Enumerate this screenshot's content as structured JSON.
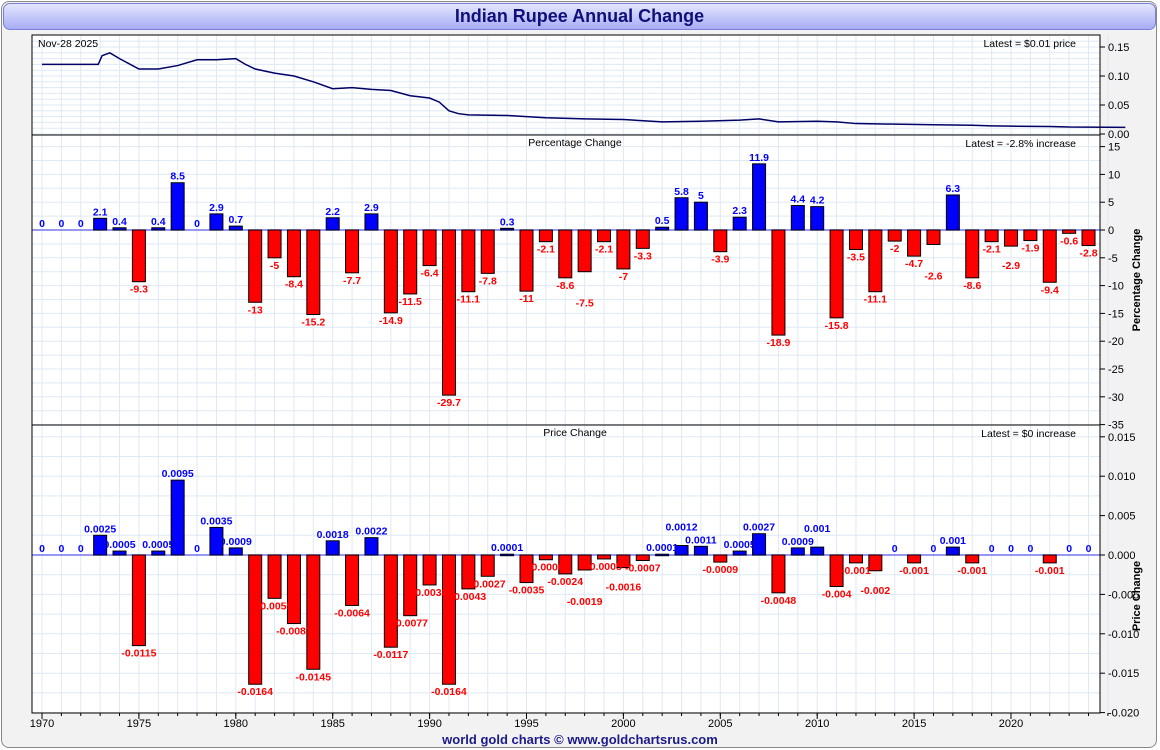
{
  "title": "Indian Rupee Annual Change",
  "footer": "world gold charts © www.goldchartsrus.com",
  "colors": {
    "up": "#0000ff",
    "down": "#ff0000",
    "line": "#000066",
    "grid": "#dde9f5"
  },
  "chart_data": [
    {
      "type": "line",
      "date_label": "Nov-28  2025",
      "latest": "Latest = $0.01 price",
      "ylim": [
        0,
        0.16
      ],
      "yticks": [
        "0.15",
        "0.10",
        "0.05",
        "0.00"
      ],
      "ytick_values": [
        0.15,
        0.1,
        0.05,
        0.0
      ],
      "x": [
        1970,
        1972.9,
        1973.1,
        1973.5,
        1974,
        1975,
        1976,
        1977,
        1978,
        1979,
        1980,
        1980.5,
        1981,
        1982,
        1983,
        1984,
        1985,
        1986,
        1987,
        1988,
        1989,
        1990,
        1990.5,
        1991,
        1991.5,
        1992,
        1994,
        1995,
        1996,
        1998,
        2000,
        2002,
        2004,
        2006,
        2007,
        2008,
        2010,
        2011,
        2012,
        2014,
        2016,
        2018,
        2019,
        2020,
        2022,
        2023,
        2025.9
      ],
      "y": [
        0.12,
        0.12,
        0.135,
        0.14,
        0.13,
        0.112,
        0.112,
        0.118,
        0.128,
        0.128,
        0.13,
        0.12,
        0.112,
        0.105,
        0.1,
        0.09,
        0.078,
        0.08,
        0.077,
        0.075,
        0.066,
        0.062,
        0.055,
        0.04,
        0.035,
        0.033,
        0.032,
        0.03,
        0.028,
        0.026,
        0.025,
        0.021,
        0.022,
        0.024,
        0.026,
        0.021,
        0.022,
        0.021,
        0.018,
        0.017,
        0.016,
        0.015,
        0.014,
        0.0135,
        0.013,
        0.012,
        0.0114
      ]
    },
    {
      "type": "bar",
      "title": "Percentage Change",
      "latest": "Latest = -2.8% increase",
      "ylabel": "Percentage Change",
      "ylim": [
        -35,
        15
      ],
      "yticks": [
        "15",
        "10",
        "5",
        "0",
        "-5",
        "-10",
        "-15",
        "-20",
        "-25",
        "-30",
        "-35"
      ],
      "ytick_values": [
        15,
        10,
        5,
        0,
        -5,
        -10,
        -15,
        -20,
        -25,
        -30,
        -35
      ],
      "categories": [
        1970,
        1971,
        1972,
        1973,
        1974,
        1975,
        1976,
        1977,
        1978,
        1979,
        1980,
        1981,
        1982,
        1983,
        1984,
        1985,
        1986,
        1987,
        1988,
        1989,
        1990,
        1991,
        1992,
        1993,
        1994,
        1995,
        1996,
        1997,
        1998,
        1999,
        2000,
        2001,
        2002,
        2003,
        2004,
        2005,
        2006,
        2007,
        2008,
        2009,
        2010,
        2011,
        2012,
        2013,
        2014,
        2015,
        2016,
        2017,
        2018,
        2019,
        2020,
        2021,
        2022,
        2023,
        2024
      ],
      "values": [
        0,
        0,
        0,
        2.1,
        0.4,
        -9.3,
        0.4,
        8.5,
        0,
        2.9,
        0.7,
        -13,
        -5,
        -8.4,
        -15.2,
        2.2,
        -7.7,
        2.9,
        -14.9,
        -11.5,
        -6.4,
        -29.7,
        -11.1,
        -7.8,
        0.3,
        -11,
        -2.1,
        -8.6,
        -7.5,
        -2.1,
        -7,
        -3.3,
        0.5,
        5.8,
        5,
        -3.9,
        2.3,
        11.9,
        -18.9,
        4.4,
        4.2,
        -15.8,
        -3.5,
        -11.1,
        -2,
        -4.7,
        -2.6,
        6.3,
        -8.6,
        -2.1,
        -2.9,
        -1.9,
        -9.4,
        -0.6,
        -2.8
      ],
      "labels": [
        "0",
        "0",
        "0",
        "2.1",
        "0.4",
        "-9.3",
        "0.4",
        "8.5",
        "0",
        "2.9",
        "0.7",
        "-13",
        "-5",
        "-8.4",
        "-15.2",
        "2.2",
        "-7.7",
        "2.9",
        "-14.9",
        "-11.5",
        "-6.4",
        "-29.7",
        "-11.1",
        "-7.8",
        "0.3",
        "-11",
        "-2.1",
        "-8.6",
        "-7.5",
        "-2.1",
        "-7",
        "-3.3",
        "0.5",
        "5.8",
        "5",
        "-3.9",
        "2.3",
        "11.9",
        "-18.9",
        "4.4",
        "4.2",
        "-15.8",
        "-3.5",
        "-11.1",
        "-2",
        "-4.7",
        "-2.6",
        "6.3",
        "-8.6",
        "-2.1",
        "-2.9",
        "-1.9",
        "-9.4",
        "-0.6",
        "-2.8"
      ]
    },
    {
      "type": "bar",
      "title": "Price Change",
      "latest": "Latest = $0 increase",
      "ylabel": "Price Change",
      "ylim": [
        -0.02,
        0.015
      ],
      "yticks": [
        "0.015",
        "0.010",
        "0.005",
        "0.000",
        "-0.005",
        "-0.010",
        "-0.015",
        "-0.020"
      ],
      "ytick_values": [
        0.015,
        0.01,
        0.005,
        0,
        -0.005,
        -0.01,
        -0.015,
        -0.02
      ],
      "values": [
        0,
        0,
        0,
        0.0025,
        0.0005,
        -0.0115,
        0.0005,
        0.0095,
        0,
        0.0035,
        0.0009,
        -0.0164,
        -0.0055,
        -0.0087,
        -0.0145,
        0.0018,
        -0.0064,
        0.0022,
        -0.0117,
        -0.0077,
        -0.0038,
        -0.0164,
        -0.0043,
        -0.0027,
        0.0001,
        -0.0035,
        -0.0006,
        -0.0024,
        -0.0019,
        -0.0005,
        -0.0016,
        -0.0007,
        0.0001,
        0.0012,
        0.0011,
        -0.0009,
        0.0005,
        0.0027,
        -0.0048,
        0.0009,
        0.001,
        -0.004,
        -0.001,
        -0.002,
        0,
        -0.001,
        0,
        0.001,
        -0.001,
        0,
        0,
        0,
        -0.001,
        0,
        0
      ],
      "labels": [
        "0",
        "0",
        "0",
        "0.0025",
        "0.0005",
        "-0.0115",
        "0.0005",
        "0.0095",
        "0",
        "0.0035",
        "0.0009",
        "-0.0164",
        "-0.0055",
        "-0.0087",
        "-0.0145",
        "0.0018",
        "-0.0064",
        "0.0022",
        "-0.0117",
        "-0.0077",
        "-0.0038",
        "-0.0164",
        "-0.0043",
        "-0.0027",
        "0.0001",
        "-0.0035",
        "-0.0006",
        "-0.0024",
        "-0.0019",
        "-0.0005",
        "-0.0016",
        "-0.0007",
        "0.0001",
        "0.0012",
        "0.0011",
        "-0.0009",
        "0.0005",
        "0.0027",
        "-0.0048",
        "0.0009",
        "0.001",
        "-0.004",
        "-0.001",
        "-0.002",
        "0",
        "-0.001",
        "0",
        "0.001",
        "-0.001",
        "0",
        "0",
        "0",
        "-0.001",
        "0",
        "0"
      ]
    }
  ],
  "xaxis": {
    "ticks": [
      "1970",
      "1975",
      "1980",
      "1985",
      "1990",
      "1995",
      "2000",
      "2005",
      "2010",
      "2015",
      "2020"
    ],
    "tick_values": [
      1970,
      1975,
      1980,
      1985,
      1990,
      1995,
      2000,
      2005,
      2010,
      2015,
      2020
    ]
  }
}
